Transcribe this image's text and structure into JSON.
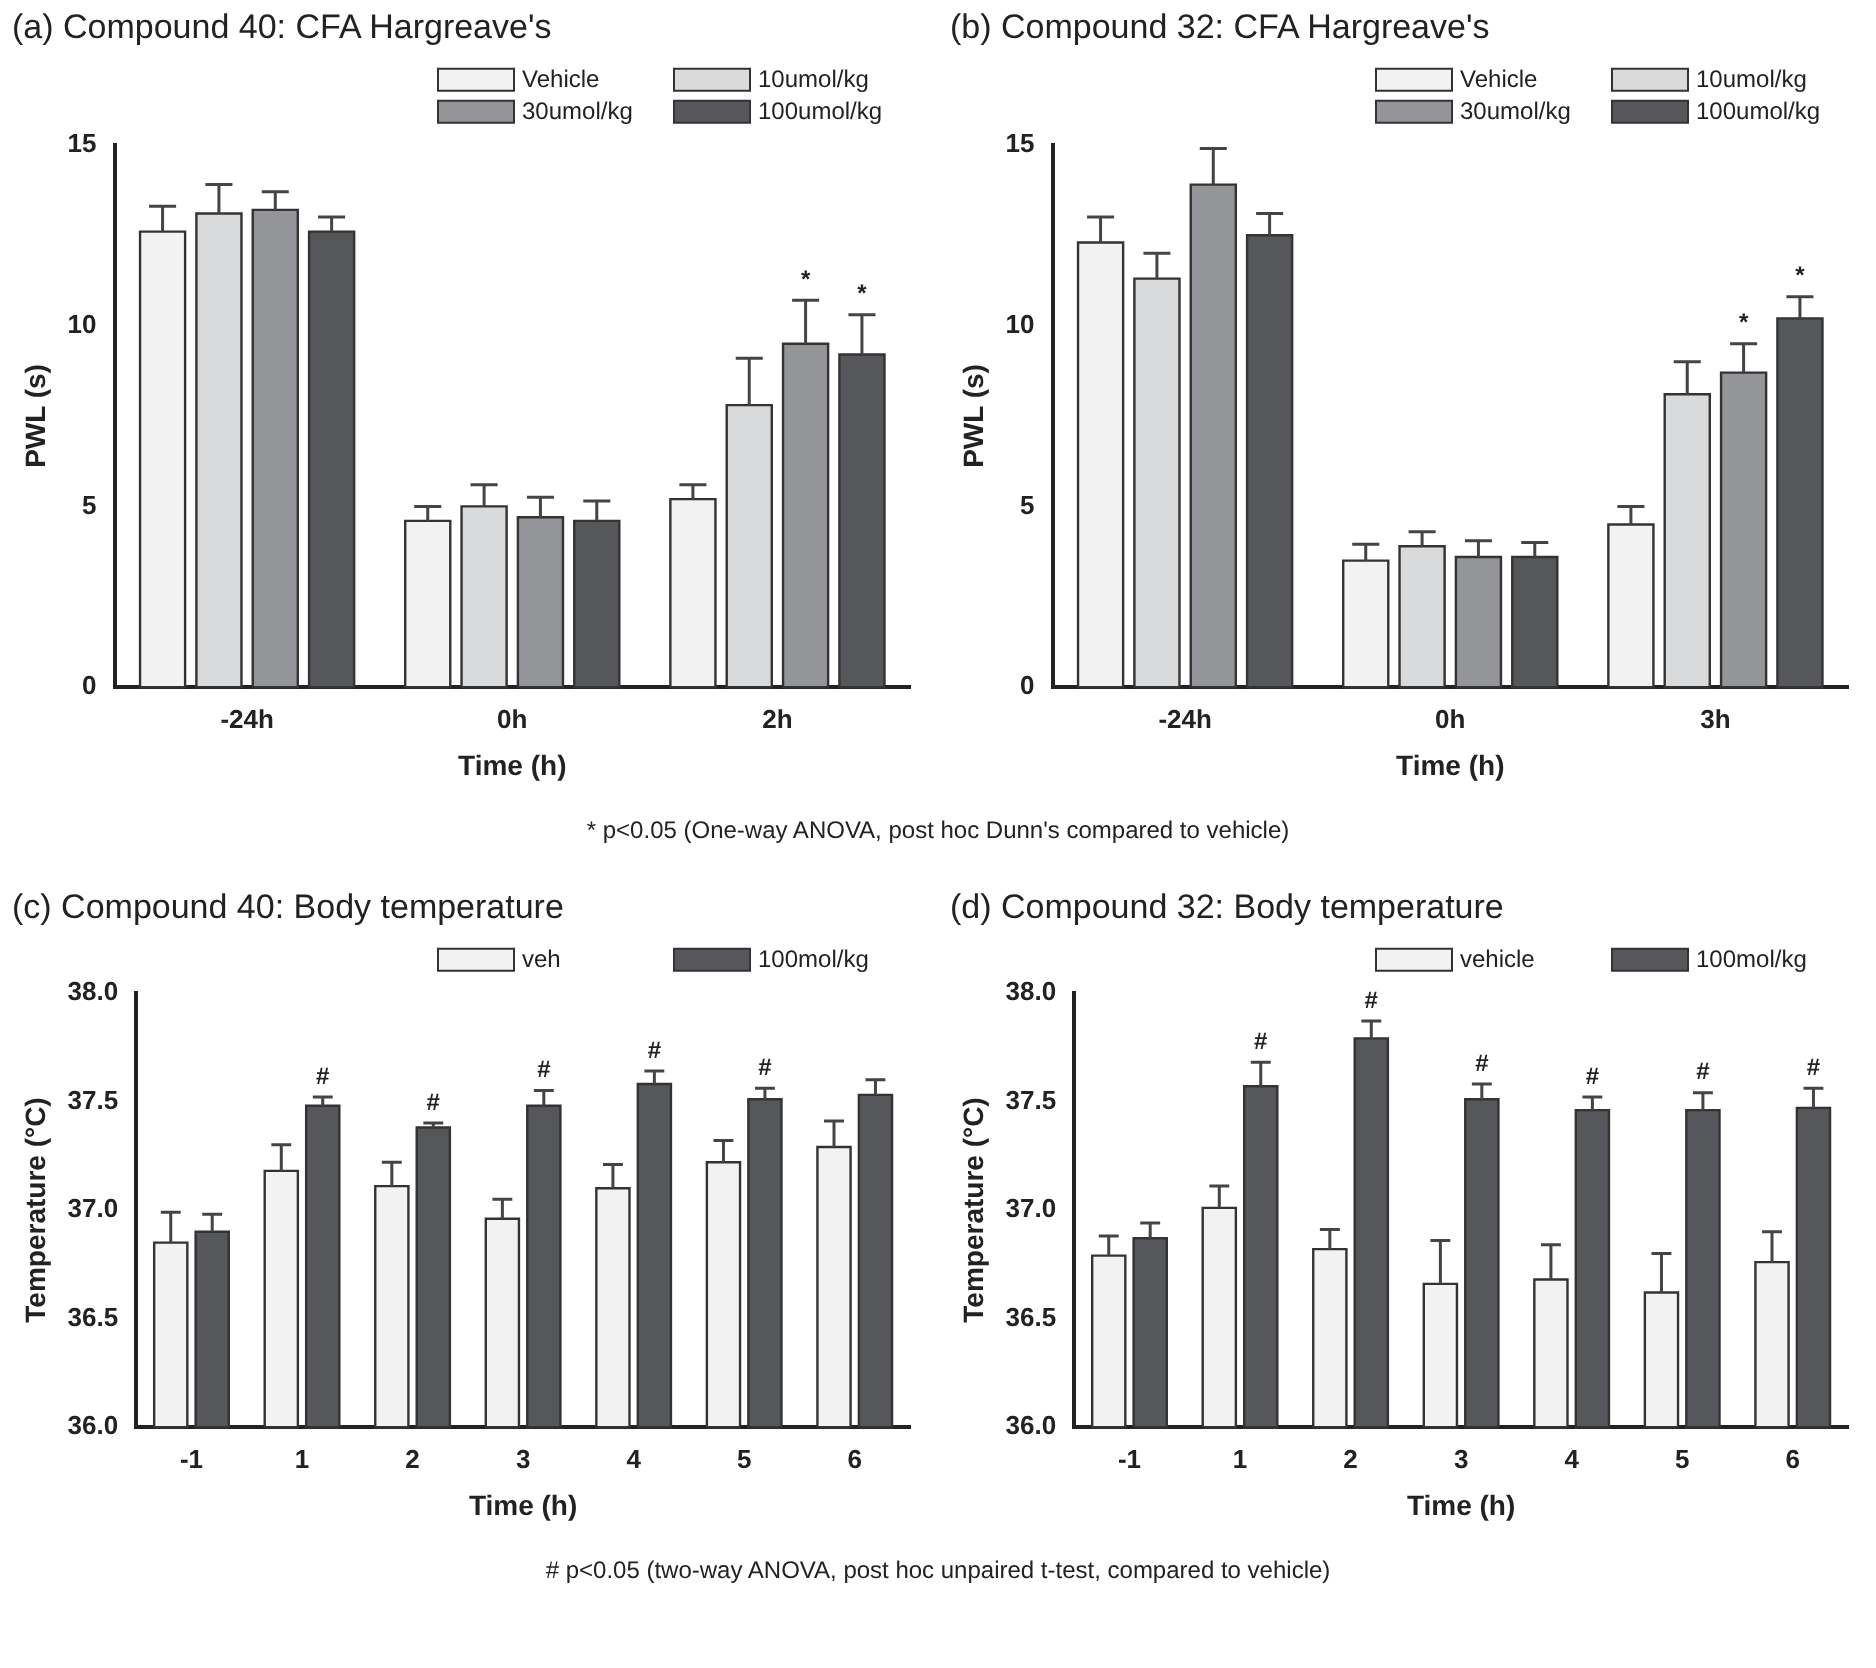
{
  "chart_data": [
    {
      "type": "bar",
      "title": "(a) Compound 40: CFA Hargreave's",
      "xlabel": "Time (h)",
      "ylabel": "PWL (s)",
      "categories": [
        "-24h",
        "0h",
        "2h"
      ],
      "ylim": [
        0,
        15
      ],
      "yticks": [
        0,
        5,
        10,
        15
      ],
      "grid": false,
      "legend": "top right",
      "annotations": [
        "*   p<0.05 (One-way ANOVA, post hoc Dunn's compared to vehicle)"
      ],
      "series": [
        {
          "name": "Vehicle",
          "color": "#f2f2f2",
          "values": [
            12.6,
            4.6,
            5.2
          ],
          "errors": [
            [
              12.6,
              13.3
            ],
            [
              4.6,
              5.0
            ],
            [
              5.2,
              5.6
            ]
          ]
        },
        {
          "name": "10umol/kg",
          "color": "#d9dadb",
          "values": [
            13.1,
            5.0,
            7.8
          ],
          "errors": [
            [
              13.1,
              13.9
            ],
            [
              5.0,
              5.6
            ],
            [
              7.8,
              9.1
            ]
          ]
        },
        {
          "name": "30umol/kg",
          "color": "#939598",
          "values": [
            13.2,
            4.7,
            9.5
          ],
          "errors": [
            [
              13.2,
              13.7
            ],
            [
              4.7,
              5.25
            ],
            [
              9.5,
              10.7
            ]
          ],
          "value_labels": [
            null,
            null,
            "*"
          ]
        },
        {
          "name": "100umol/kg",
          "color": "#55575a",
          "values": [
            12.6,
            4.6,
            9.2
          ],
          "errors": [
            [
              12.6,
              13.0
            ],
            [
              4.6,
              5.15
            ],
            [
              9.2,
              10.3
            ]
          ],
          "value_labels": [
            null,
            null,
            "*"
          ]
        }
      ]
    },
    {
      "type": "bar",
      "title": "(b) Compound 32: CFA Hargreave's",
      "xlabel": "Time (h)",
      "ylabel": "PWL (s)",
      "categories": [
        "-24h",
        "0h",
        "3h"
      ],
      "ylim": [
        0,
        15
      ],
      "yticks": [
        0,
        5,
        10,
        15
      ],
      "grid": false,
      "legend": "top right",
      "series": [
        {
          "name": "Vehicle",
          "color": "#f2f2f2",
          "values": [
            12.3,
            3.5,
            4.5
          ],
          "errors": [
            [
              12.3,
              13.0
            ],
            [
              3.5,
              3.95
            ],
            [
              4.5,
              5.0
            ]
          ]
        },
        {
          "name": "10umol/kg",
          "color": "#d9dadb",
          "values": [
            11.3,
            3.9,
            8.1
          ],
          "errors": [
            [
              11.3,
              12.0
            ],
            [
              3.9,
              4.3
            ],
            [
              8.1,
              9.0
            ]
          ]
        },
        {
          "name": "30umol/kg",
          "color": "#939598",
          "values": [
            13.9,
            3.6,
            8.7
          ],
          "errors": [
            [
              13.9,
              14.9
            ],
            [
              3.6,
              4.05
            ],
            [
              8.7,
              9.5
            ]
          ],
          "value_labels": [
            null,
            null,
            "*"
          ]
        },
        {
          "name": "100umol/kg",
          "color": "#55575a",
          "values": [
            12.5,
            3.6,
            10.2
          ],
          "errors": [
            [
              12.5,
              13.1
            ],
            [
              3.6,
              4.0
            ],
            [
              10.2,
              10.8
            ]
          ],
          "value_labels": [
            null,
            null,
            "*"
          ]
        }
      ]
    },
    {
      "type": "bar",
      "title": "(c) Compound 40: Body temperature",
      "xlabel": "Time (h)",
      "ylabel": "Temperature (°C)",
      "categories": [
        "-1",
        "1",
        "2",
        "3",
        "4",
        "5",
        "6"
      ],
      "ylim": [
        36,
        38
      ],
      "yticks": [
        {
          "value": 36,
          "label": "36.0"
        },
        36.5,
        {
          "value": 37,
          "label": "37.0"
        },
        37.5,
        {
          "value": 38,
          "label": "38.0"
        }
      ],
      "grid": false,
      "legend": "top right",
      "annotations": [
        "#  p<0.05 (two-way ANOVA, post hoc unpaired t-test, compared to vehicle)"
      ],
      "series": [
        {
          "name": "veh",
          "color": "#f2f2f2",
          "values": [
            36.85,
            37.18,
            37.11,
            36.96,
            37.1,
            37.22,
            37.29
          ],
          "errors": [
            [
              36.85,
              36.99
            ],
            [
              37.18,
              37.3
            ],
            [
              37.11,
              37.22
            ],
            [
              36.96,
              37.05
            ],
            [
              37.1,
              37.21
            ],
            [
              37.22,
              37.32
            ],
            [
              37.29,
              37.41
            ]
          ]
        },
        {
          "name": "100mol/kg",
          "color": "#55575a",
          "values": [
            36.9,
            37.48,
            37.38,
            37.48,
            37.58,
            37.51,
            37.53
          ],
          "errors": [
            [
              36.9,
              36.98
            ],
            [
              37.48,
              37.52
            ],
            [
              37.38,
              37.4
            ],
            [
              37.48,
              37.55
            ],
            [
              37.58,
              37.64
            ],
            [
              37.51,
              37.56
            ],
            [
              37.53,
              37.6
            ]
          ],
          "value_labels": [
            null,
            "#",
            "#",
            "#",
            "#",
            "#",
            null
          ]
        }
      ]
    },
    {
      "type": "bar",
      "title": "(d) Compound 32: Body temperature",
      "xlabel": "Time (h)",
      "ylabel": "Temperature (°C)",
      "categories": [
        "-1",
        "1",
        "2",
        "3",
        "4",
        "5",
        "6"
      ],
      "ylim": [
        36,
        38
      ],
      "yticks": [
        {
          "value": 36,
          "label": "36.0"
        },
        36.5,
        {
          "value": 37,
          "label": "37.0"
        },
        37.5,
        {
          "value": 38,
          "label": "38.0"
        }
      ],
      "grid": false,
      "legend": "top right",
      "series": [
        {
          "name": "vehicle",
          "color": "#f2f2f2",
          "values": [
            36.79,
            37.01,
            36.82,
            36.66,
            36.68,
            36.62,
            36.76
          ],
          "errors": [
            [
              36.79,
              36.88
            ],
            [
              37.01,
              37.11
            ],
            [
              36.82,
              36.91
            ],
            [
              36.66,
              36.86
            ],
            [
              36.68,
              36.84
            ],
            [
              36.62,
              36.8
            ],
            [
              36.76,
              36.9
            ]
          ]
        },
        {
          "name": "100mol/kg",
          "color": "#55575a",
          "values": [
            36.87,
            37.57,
            37.79,
            37.51,
            37.46,
            37.46,
            37.47
          ],
          "errors": [
            [
              36.87,
              36.94
            ],
            [
              37.57,
              37.68
            ],
            [
              37.79,
              37.87
            ],
            [
              37.51,
              37.58
            ],
            [
              37.46,
              37.52
            ],
            [
              37.46,
              37.54
            ],
            [
              37.47,
              37.56
            ]
          ],
          "value_labels": [
            null,
            "#",
            "#",
            "#",
            "#",
            "#",
            "#"
          ]
        }
      ]
    }
  ]
}
